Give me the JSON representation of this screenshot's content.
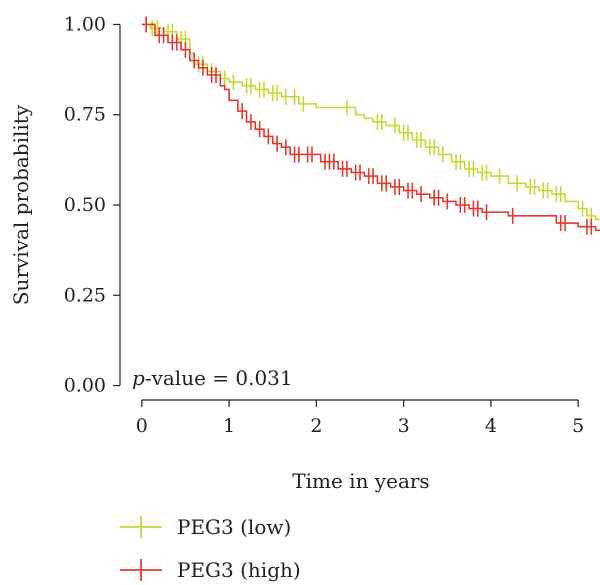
{
  "chart_data": {
    "type": "line",
    "subtype": "kaplan-meier",
    "title": "",
    "xlabel": "Time in years",
    "ylabel": "Survival probability",
    "xlim": [
      -0.25,
      5.25
    ],
    "ylim": [
      -0.04,
      1.04
    ],
    "xticks": [
      "0",
      "1",
      "2",
      "3",
      "4",
      "5"
    ],
    "yticks": [
      "0.00",
      "0.25",
      "0.50",
      "0.75",
      "1.00"
    ],
    "grid": false,
    "legend_position": "bottom-left",
    "annotation": {
      "italic": "p",
      "text": "-value = 0.031"
    },
    "series": [
      {
        "name": "PEG3 (low)",
        "color": "#c7d935",
        "steps": [
          [
            0,
            1.0
          ],
          [
            0.1,
            0.99
          ],
          [
            0.25,
            0.98
          ],
          [
            0.4,
            0.96
          ],
          [
            0.55,
            0.92
          ],
          [
            0.6,
            0.89
          ],
          [
            0.75,
            0.87
          ],
          [
            0.9,
            0.85
          ],
          [
            1.0,
            0.84
          ],
          [
            1.15,
            0.83
          ],
          [
            1.3,
            0.82
          ],
          [
            1.45,
            0.81
          ],
          [
            1.6,
            0.8
          ],
          [
            1.8,
            0.78
          ],
          [
            2.0,
            0.77
          ],
          [
            2.3,
            0.77
          ],
          [
            2.45,
            0.75
          ],
          [
            2.55,
            0.74
          ],
          [
            2.65,
            0.73
          ],
          [
            2.8,
            0.72
          ],
          [
            2.95,
            0.7
          ],
          [
            3.1,
            0.68
          ],
          [
            3.25,
            0.66
          ],
          [
            3.4,
            0.64
          ],
          [
            3.55,
            0.62
          ],
          [
            3.7,
            0.6
          ],
          [
            3.85,
            0.59
          ],
          [
            4.0,
            0.58
          ],
          [
            4.2,
            0.56
          ],
          [
            4.4,
            0.55
          ],
          [
            4.55,
            0.54
          ],
          [
            4.7,
            0.53
          ],
          [
            4.85,
            0.51
          ],
          [
            5.0,
            0.49
          ],
          [
            5.1,
            0.47
          ],
          [
            5.2,
            0.46
          ]
        ],
        "censored": [
          [
            0.05,
            1.0
          ],
          [
            0.12,
            0.99
          ],
          [
            0.18,
            0.99
          ],
          [
            0.3,
            0.98
          ],
          [
            0.35,
            0.98
          ],
          [
            0.45,
            0.96
          ],
          [
            0.5,
            0.96
          ],
          [
            0.65,
            0.89
          ],
          [
            0.7,
            0.89
          ],
          [
            0.8,
            0.87
          ],
          [
            0.95,
            0.85
          ],
          [
            1.05,
            0.84
          ],
          [
            1.2,
            0.83
          ],
          [
            1.25,
            0.83
          ],
          [
            1.35,
            0.82
          ],
          [
            1.4,
            0.82
          ],
          [
            1.5,
            0.81
          ],
          [
            1.55,
            0.81
          ],
          [
            1.65,
            0.8
          ],
          [
            1.75,
            0.8
          ],
          [
            1.85,
            0.78
          ],
          [
            2.35,
            0.77
          ],
          [
            2.7,
            0.73
          ],
          [
            2.75,
            0.73
          ],
          [
            2.9,
            0.72
          ],
          [
            3.0,
            0.7
          ],
          [
            3.05,
            0.7
          ],
          [
            3.15,
            0.68
          ],
          [
            3.2,
            0.68
          ],
          [
            3.3,
            0.66
          ],
          [
            3.35,
            0.66
          ],
          [
            3.45,
            0.64
          ],
          [
            3.6,
            0.62
          ],
          [
            3.65,
            0.62
          ],
          [
            3.75,
            0.6
          ],
          [
            3.8,
            0.6
          ],
          [
            3.9,
            0.59
          ],
          [
            3.95,
            0.59
          ],
          [
            4.1,
            0.58
          ],
          [
            4.3,
            0.56
          ],
          [
            4.45,
            0.55
          ],
          [
            4.5,
            0.55
          ],
          [
            4.6,
            0.54
          ],
          [
            4.65,
            0.54
          ],
          [
            4.75,
            0.53
          ],
          [
            4.8,
            0.53
          ],
          [
            5.05,
            0.49
          ],
          [
            5.15,
            0.47
          ]
        ]
      },
      {
        "name": "PEG3 (high)",
        "color": "#e33a2f",
        "steps": [
          [
            0,
            1.0
          ],
          [
            0.15,
            0.97
          ],
          [
            0.3,
            0.95
          ],
          [
            0.45,
            0.93
          ],
          [
            0.55,
            0.9
          ],
          [
            0.65,
            0.88
          ],
          [
            0.75,
            0.86
          ],
          [
            0.9,
            0.83
          ],
          [
            0.95,
            0.82
          ],
          [
            1.0,
            0.79
          ],
          [
            1.1,
            0.76
          ],
          [
            1.2,
            0.73
          ],
          [
            1.3,
            0.71
          ],
          [
            1.4,
            0.69
          ],
          [
            1.5,
            0.67
          ],
          [
            1.6,
            0.66
          ],
          [
            1.7,
            0.64
          ],
          [
            2.0,
            0.64
          ],
          [
            2.05,
            0.62
          ],
          [
            2.25,
            0.6
          ],
          [
            2.4,
            0.59
          ],
          [
            2.55,
            0.58
          ],
          [
            2.7,
            0.56
          ],
          [
            2.85,
            0.55
          ],
          [
            3.0,
            0.54
          ],
          [
            3.15,
            0.53
          ],
          [
            3.3,
            0.52
          ],
          [
            3.45,
            0.51
          ],
          [
            3.6,
            0.5
          ],
          [
            3.75,
            0.49
          ],
          [
            3.9,
            0.48
          ],
          [
            4.2,
            0.47
          ],
          [
            4.5,
            0.47
          ],
          [
            4.75,
            0.45
          ],
          [
            5.0,
            0.44
          ],
          [
            5.2,
            0.43
          ]
        ],
        "censored": [
          [
            0.05,
            1.0
          ],
          [
            0.2,
            0.97
          ],
          [
            0.25,
            0.97
          ],
          [
            0.35,
            0.95
          ],
          [
            0.4,
            0.95
          ],
          [
            0.5,
            0.93
          ],
          [
            0.6,
            0.9
          ],
          [
            0.7,
            0.88
          ],
          [
            0.8,
            0.86
          ],
          [
            0.85,
            0.86
          ],
          [
            1.15,
            0.76
          ],
          [
            1.25,
            0.73
          ],
          [
            1.35,
            0.71
          ],
          [
            1.45,
            0.69
          ],
          [
            1.55,
            0.67
          ],
          [
            1.65,
            0.66
          ],
          [
            1.75,
            0.64
          ],
          [
            1.8,
            0.64
          ],
          [
            1.9,
            0.64
          ],
          [
            1.95,
            0.64
          ],
          [
            2.1,
            0.62
          ],
          [
            2.15,
            0.62
          ],
          [
            2.2,
            0.62
          ],
          [
            2.3,
            0.6
          ],
          [
            2.35,
            0.6
          ],
          [
            2.45,
            0.59
          ],
          [
            2.5,
            0.59
          ],
          [
            2.6,
            0.58
          ],
          [
            2.65,
            0.58
          ],
          [
            2.75,
            0.56
          ],
          [
            2.8,
            0.56
          ],
          [
            2.9,
            0.55
          ],
          [
            2.95,
            0.55
          ],
          [
            3.05,
            0.54
          ],
          [
            3.1,
            0.54
          ],
          [
            3.2,
            0.53
          ],
          [
            3.35,
            0.52
          ],
          [
            3.4,
            0.52
          ],
          [
            3.5,
            0.51
          ],
          [
            3.65,
            0.5
          ],
          [
            3.7,
            0.5
          ],
          [
            3.8,
            0.49
          ],
          [
            3.85,
            0.49
          ],
          [
            3.95,
            0.48
          ],
          [
            4.25,
            0.47
          ],
          [
            4.8,
            0.45
          ],
          [
            4.85,
            0.45
          ],
          [
            5.1,
            0.44
          ],
          [
            5.15,
            0.44
          ]
        ]
      }
    ]
  }
}
